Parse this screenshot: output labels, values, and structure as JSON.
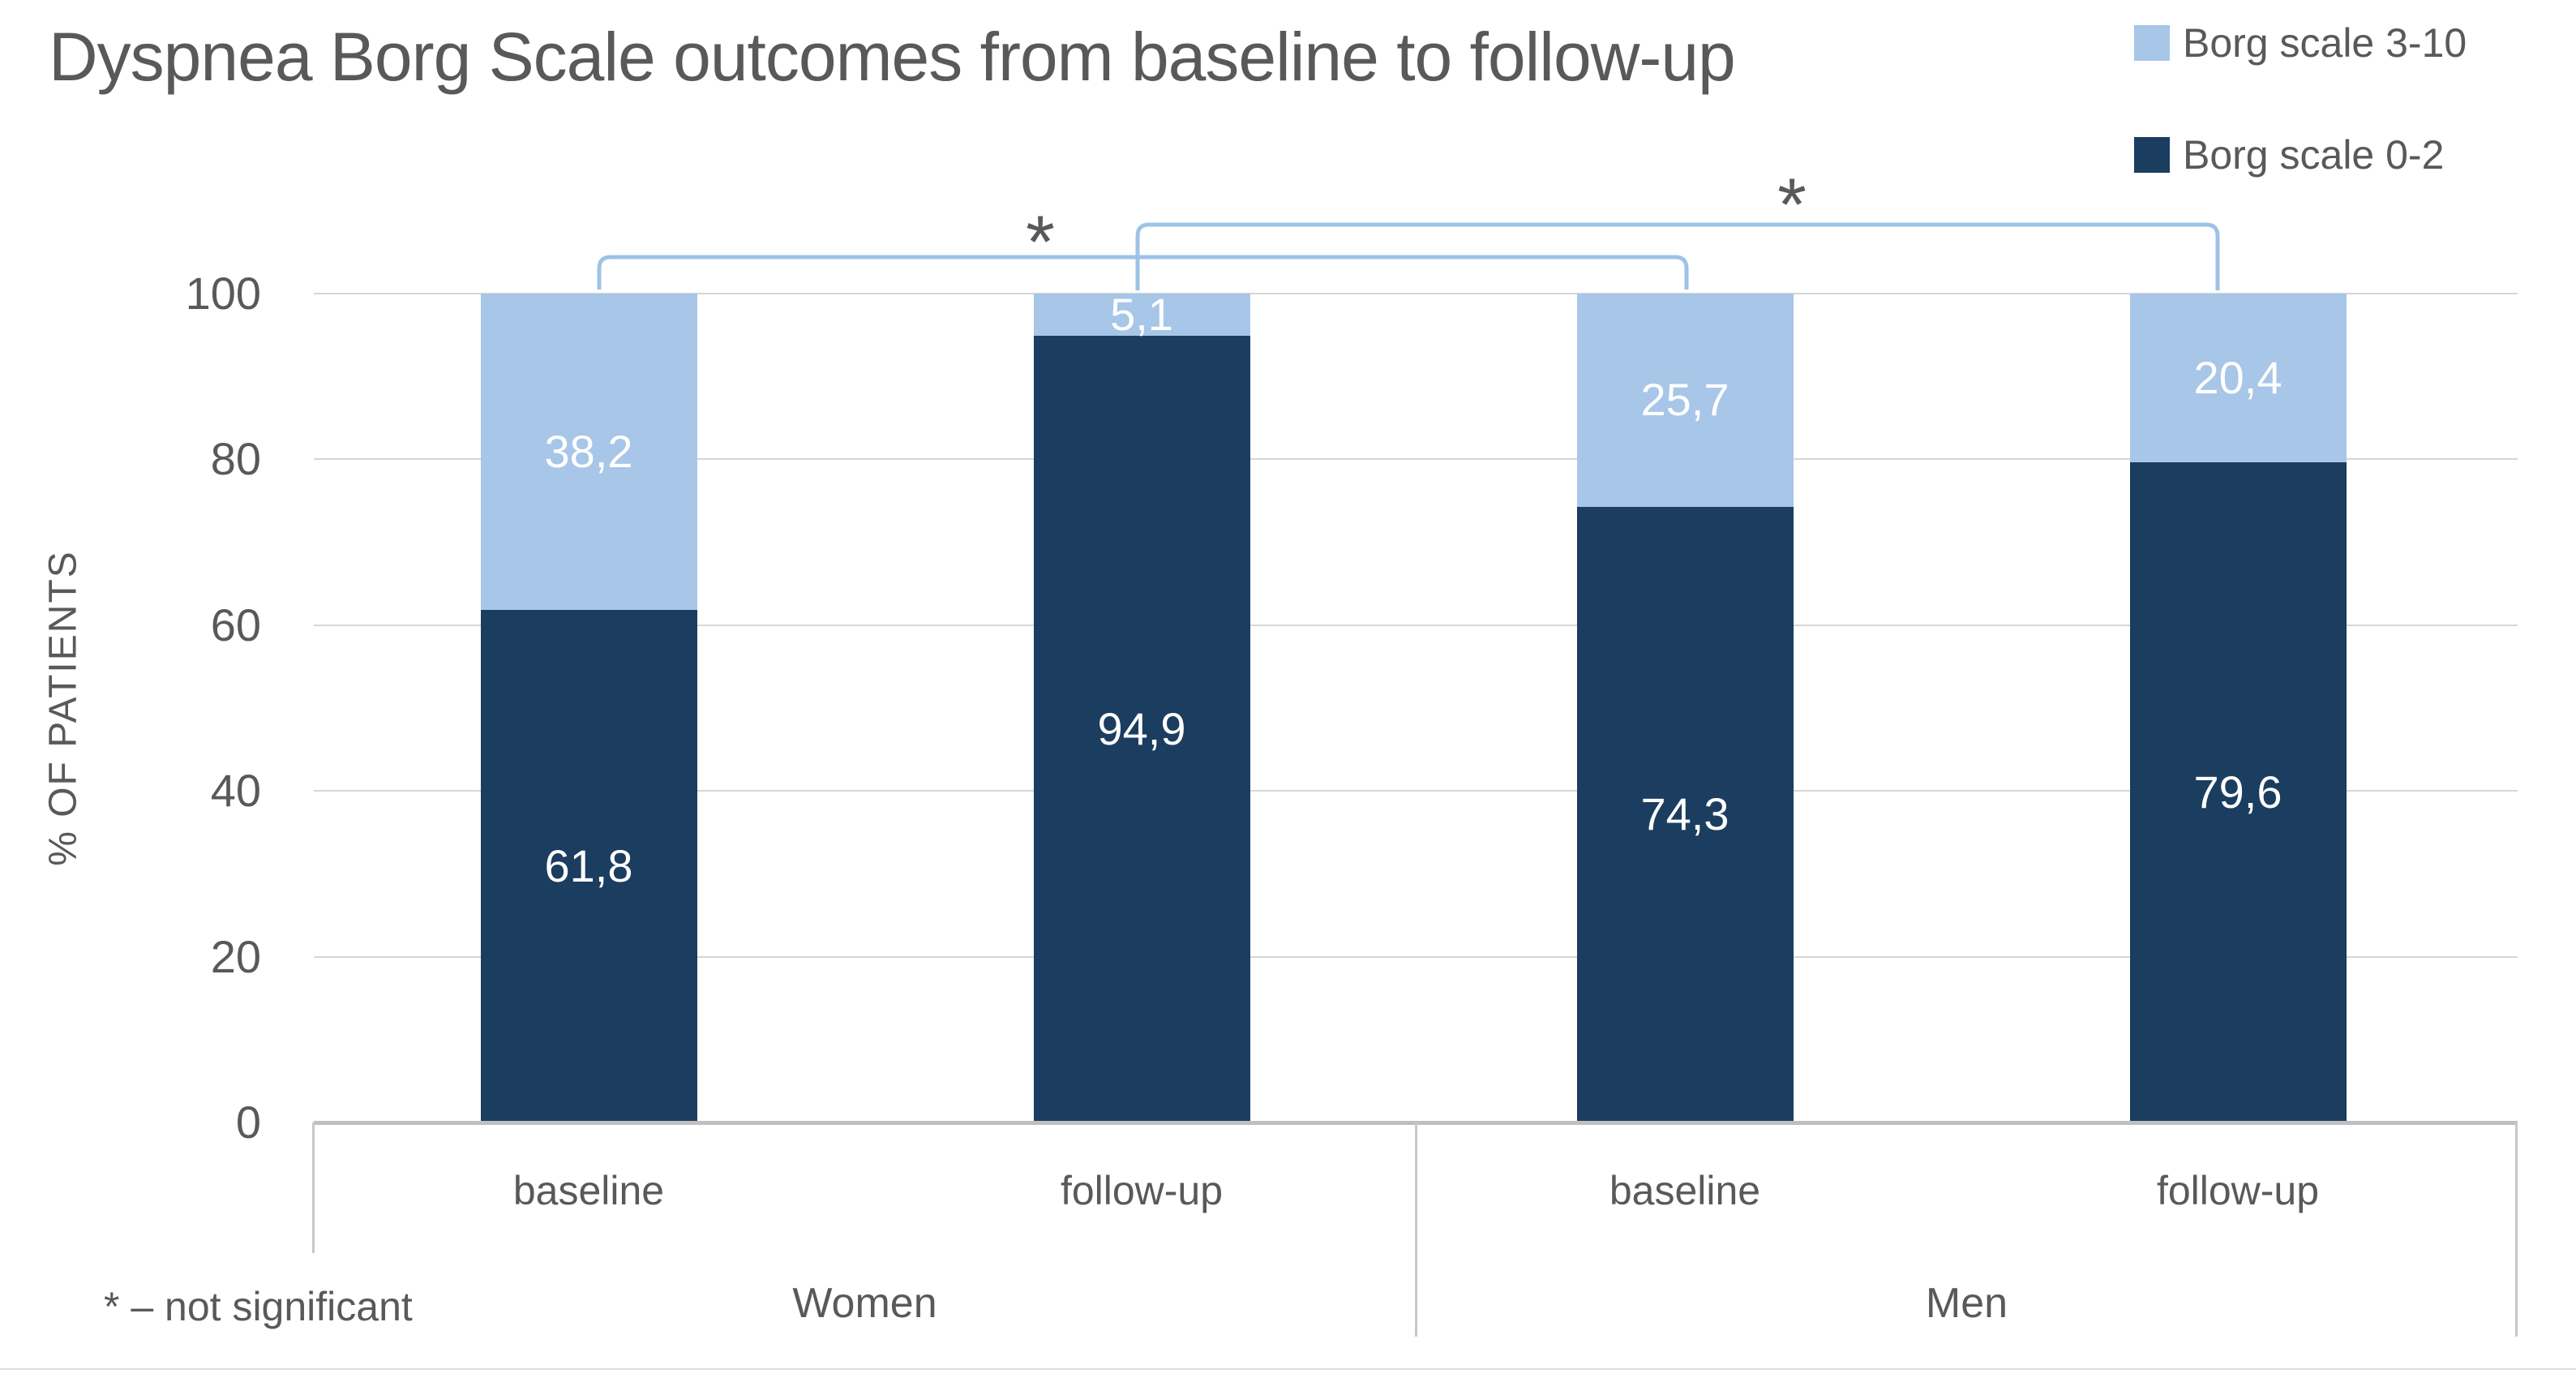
{
  "title": "Dyspnea Borg Scale outcomes from baseline to follow-up",
  "footnote": "* – not significant",
  "legend": {
    "items": [
      {
        "label": "Borg scale 3-10",
        "color": "#a7c6e8"
      },
      {
        "label": "Borg scale 0-2",
        "color": "#1b3d60"
      }
    ]
  },
  "y_axis": {
    "title": "% OF PATIENTS",
    "ticks": [
      0,
      20,
      40,
      60,
      80,
      100
    ]
  },
  "chart_data": {
    "type": "bar",
    "stacked": true,
    "title": "Dyspnea Borg Scale outcomes from baseline to follow-up",
    "ylabel": "% OF PATIENTS",
    "ylim": [
      0,
      100
    ],
    "grid": true,
    "legend_position": "top-right",
    "groups": [
      "Women",
      "Men"
    ],
    "categories": [
      "baseline",
      "follow-up",
      "baseline",
      "follow-up"
    ],
    "category_group_index": [
      0,
      0,
      1,
      1
    ],
    "series": [
      {
        "name": "Borg scale 0-2",
        "color": "#1b3d60",
        "values": [
          61.8,
          94.9,
          74.3,
          79.6
        ],
        "display_labels": [
          "61,8",
          "94,9",
          "74,3",
          "79,6"
        ],
        "label_color": "#ffffff"
      },
      {
        "name": "Borg scale 3-10",
        "color": "#a7c6e8",
        "values": [
          38.2,
          5.1,
          25.7,
          20.4
        ],
        "display_labels": [
          "38,2",
          "5,1",
          "25,7",
          "20,4"
        ],
        "label_color": "#ffffff"
      }
    ],
    "annotations": {
      "brackets": [
        {
          "from_category": 0,
          "to_category": 2,
          "label": "*"
        },
        {
          "from_category": 1,
          "to_category": 3,
          "label": "*"
        }
      ],
      "note": "* – not significant",
      "bracket_color": "#9dc3e6"
    }
  }
}
